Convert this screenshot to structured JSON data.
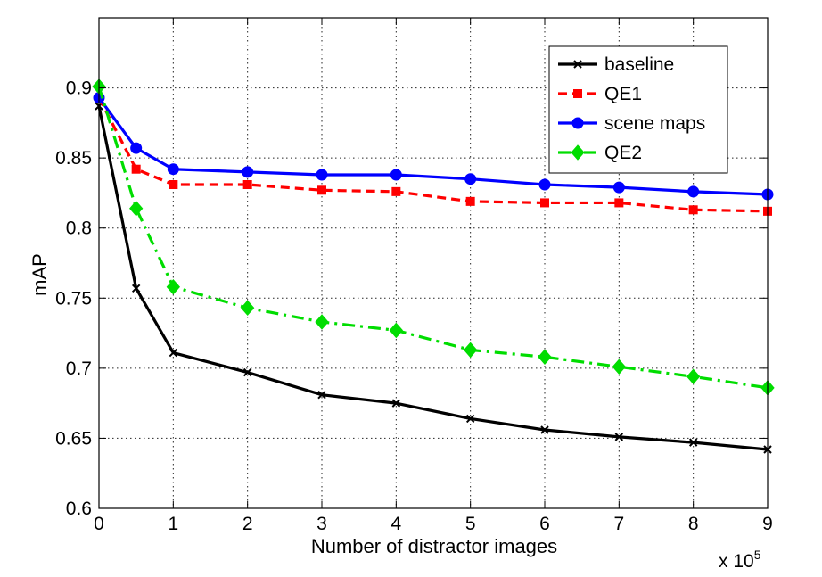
{
  "chart_data": {
    "type": "line",
    "xlabel": "Number of distractor images",
    "ylabel": "mAP",
    "x_multiplier_label": "x 10",
    "x_multiplier_exponent": "5",
    "xlim": [
      0,
      9
    ],
    "ylim": [
      0.6,
      0.95
    ],
    "xticks": [
      0,
      1,
      2,
      3,
      4,
      5,
      6,
      7,
      8,
      9
    ],
    "xtick_labels": [
      "0",
      "1",
      "2",
      "3",
      "4",
      "5",
      "6",
      "7",
      "8",
      "9"
    ],
    "yticks": [
      0.6,
      0.65,
      0.7,
      0.75,
      0.8,
      0.85,
      0.9
    ],
    "ytick_labels": [
      "0.6",
      "0.65",
      "0.7",
      "0.75",
      "0.8",
      "0.85",
      "0.9"
    ],
    "grid": true,
    "legend_position": "top-right",
    "x": [
      0,
      0.5,
      1,
      2,
      3,
      4,
      5,
      6,
      7,
      8,
      9
    ],
    "series": [
      {
        "name": "baseline",
        "color": "#000000",
        "dash": "solid",
        "marker": "x",
        "values": [
          0.887,
          0.757,
          0.711,
          0.697,
          0.681,
          0.675,
          0.664,
          0.656,
          0.651,
          0.647,
          0.642
        ]
      },
      {
        "name": "QE1",
        "color": "#ff0000",
        "dash": "dashed",
        "marker": "square",
        "values": [
          0.893,
          0.842,
          0.831,
          0.831,
          0.827,
          0.826,
          0.819,
          0.818,
          0.818,
          0.813,
          0.812
        ]
      },
      {
        "name": "scene maps",
        "color": "#0000ff",
        "dash": "solid",
        "marker": "circle",
        "values": [
          0.893,
          0.857,
          0.842,
          0.84,
          0.838,
          0.838,
          0.835,
          0.831,
          0.829,
          0.826,
          0.824
        ]
      },
      {
        "name": "QE2",
        "color": "#00dd00",
        "dash": "dashdot",
        "marker": "diamond",
        "values": [
          0.901,
          0.814,
          0.758,
          0.743,
          0.733,
          0.727,
          0.713,
          0.708,
          0.701,
          0.694,
          0.686
        ]
      }
    ]
  }
}
